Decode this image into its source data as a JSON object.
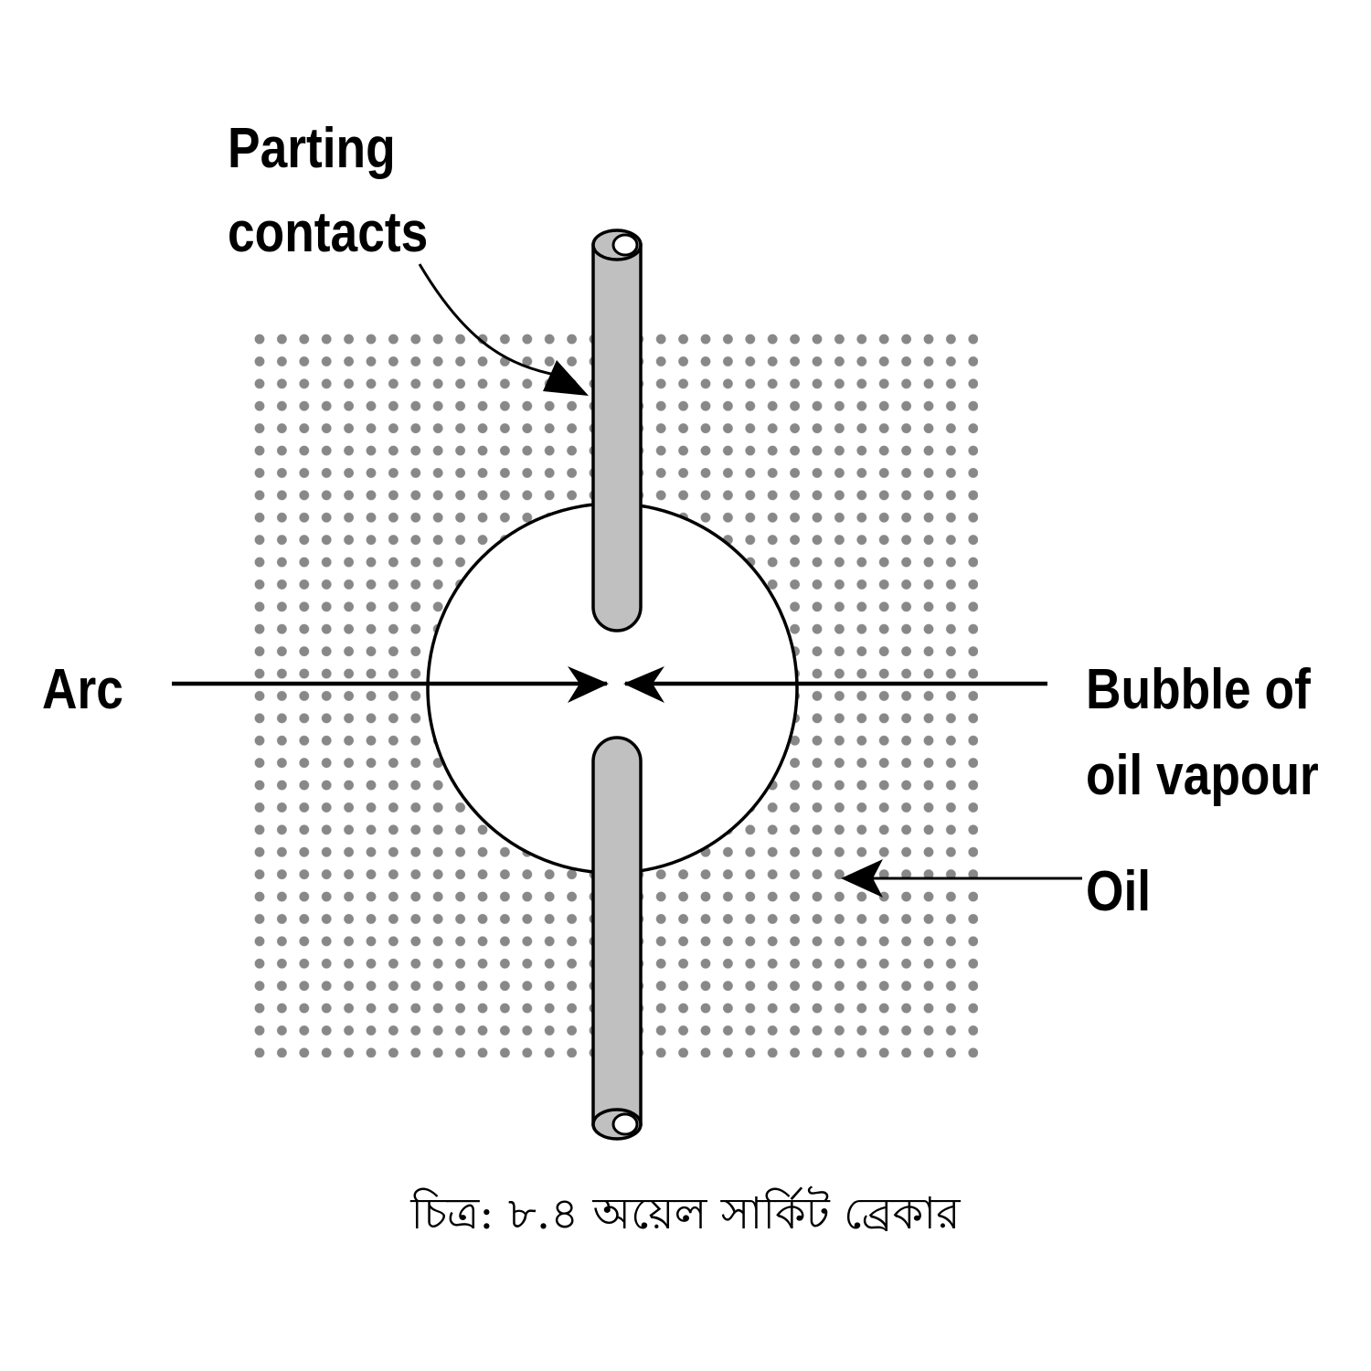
{
  "labels": {
    "parting_line1": "Parting",
    "parting_line2": "contacts",
    "arc": "Arc",
    "bubble_line1": "Bubble of",
    "bubble_line2": "oil vapour",
    "oil": "Oil"
  },
  "caption": "চিত্র: ৮.৪  অয়েল সার্কিট ব্রেকার",
  "colors": {
    "dot": "#888888",
    "contact_fill": "#c0c0c0",
    "stroke": "#000000"
  }
}
